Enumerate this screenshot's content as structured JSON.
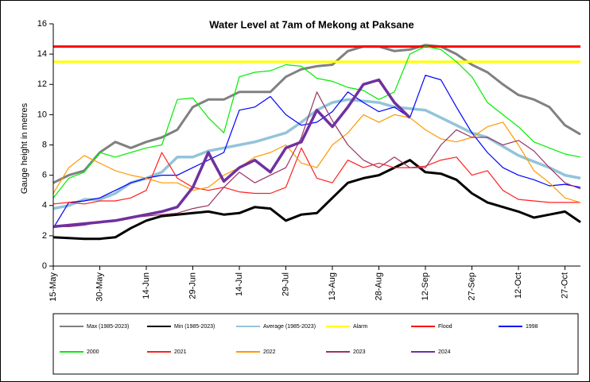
{
  "chart_data": {
    "type": "line",
    "title": "Water Level at 7am  of Mekong  at Paksane",
    "y_label": "Gauge height in metres",
    "categories": [
      "15-May",
      null,
      null,
      "30-May",
      null,
      null,
      "14-Jun",
      null,
      null,
      "29-Jun",
      null,
      null,
      "14-Jul",
      null,
      null,
      "29-Jul",
      null,
      null,
      "13-Aug",
      null,
      null,
      "28-Aug",
      null,
      null,
      "12-Sep",
      null,
      null,
      "27-Sep",
      null,
      null,
      "12-Oct",
      null,
      null,
      "27-Oct",
      null
    ],
    "ylim": [
      0,
      16
    ],
    "yticks": [
      0,
      2,
      4,
      6,
      8,
      10,
      12,
      14,
      16
    ],
    "series": [
      {
        "name": "Max (1985-2023)",
        "color": "#808080",
        "line_width": 3,
        "values": [
          5.5,
          6,
          6.3,
          7.5,
          8.2,
          7.8,
          8.2,
          8.5,
          9,
          10.5,
          11,
          11,
          11.5,
          11.5,
          11.5,
          12.5,
          13,
          13.2,
          13.3,
          14.2,
          14.5,
          14.5,
          14.2,
          14.3,
          14.6,
          14.5,
          14.0,
          13.3,
          12.8,
          12.0,
          11.3,
          11.0,
          10.5,
          9.3,
          8.7
        ]
      },
      {
        "name": "Min (1985-2023)",
        "color": "#000000",
        "line_width": 3,
        "values": [
          1.9,
          1.85,
          1.8,
          1.8,
          1.9,
          2.5,
          3,
          3.3,
          3.4,
          3.5,
          3.6,
          3.4,
          3.5,
          3.9,
          3.8,
          3,
          3.4,
          3.5,
          4.5,
          5.5,
          5.8,
          6.0,
          6.5,
          7.0,
          6.2,
          6.1,
          5.7,
          4.8,
          4.2,
          3.9,
          3.6,
          3.2,
          3.4,
          3.6,
          2.9
        ]
      },
      {
        "name": "Average (1985-2023)",
        "color": "#93c4d9",
        "line_width": 3.5,
        "values": [
          3.8,
          4.0,
          4.4,
          4.4,
          4.8,
          5.5,
          5.8,
          6.2,
          7.2,
          7.2,
          7.6,
          7.8,
          8.0,
          8.2,
          8.5,
          8.8,
          9.5,
          10.3,
          10.8,
          11,
          10.9,
          10.8,
          10.5,
          10.4,
          10.3,
          9.8,
          9.3,
          8.8,
          8.5,
          7.9,
          7.3,
          6.9,
          6.5,
          6.0,
          5.8
        ]
      },
      {
        "name": "Alarm",
        "color": "#ffff00",
        "line_width": 3,
        "values": [
          13.5,
          13.5,
          13.5,
          13.5,
          13.5,
          13.5,
          13.5,
          13.5,
          13.5,
          13.5,
          13.5,
          13.5,
          13.5,
          13.5,
          13.5,
          13.5,
          13.5,
          13.5,
          13.5,
          13.5,
          13.5,
          13.5,
          13.5,
          13.5,
          13.5,
          13.5,
          13.5,
          13.5,
          13.5,
          13.5,
          13.5,
          13.5,
          13.5,
          13.5,
          13.5
        ]
      },
      {
        "name": "Flood",
        "color": "#ff0000",
        "line_width": 3,
        "values": [
          14.5,
          14.5,
          14.5,
          14.5,
          14.5,
          14.5,
          14.5,
          14.5,
          14.5,
          14.5,
          14.5,
          14.5,
          14.5,
          14.5,
          14.5,
          14.5,
          14.5,
          14.5,
          14.5,
          14.5,
          14.5,
          14.5,
          14.5,
          14.5,
          14.5,
          14.5,
          14.5,
          14.5,
          14.5,
          14.5,
          14.5,
          14.5,
          14.5,
          14.5,
          14.5
        ]
      },
      {
        "name": "1998",
        "color": "#0000ff",
        "line_width": 1.2,
        "values": [
          2.5,
          4.2,
          4.3,
          4.5,
          5,
          5.5,
          5.8,
          6,
          6,
          6.5,
          7,
          7.5,
          10.3,
          10.5,
          11.2,
          10,
          9.3,
          9.5,
          10.2,
          11.5,
          10.8,
          10.2,
          10.5,
          9.8,
          12.6,
          12.3,
          10.5,
          8.8,
          7.5,
          6.5,
          6,
          5.7,
          5.3,
          5.4,
          5.2
        ]
      },
      {
        "name": "2000",
        "color": "#00ee00",
        "line_width": 1.2,
        "values": [
          4.5,
          5.8,
          6.2,
          7.5,
          7.2,
          7.5,
          7.8,
          8,
          11,
          11.1,
          9.8,
          8.8,
          12.5,
          12.8,
          12.9,
          13.3,
          13.2,
          12.4,
          12.2,
          11.8,
          11.6,
          11,
          11.5,
          14,
          14.5,
          14.3,
          13.5,
          12.5,
          10.8,
          10,
          9.2,
          8.2,
          7.8,
          7.4,
          7.2
        ]
      },
      {
        "name": "2021",
        "color": "#ff2020",
        "line_width": 1.2,
        "values": [
          4.1,
          4.2,
          4.1,
          4.3,
          4.3,
          4.5,
          5,
          7.5,
          5.8,
          5.2,
          5,
          5.2,
          4.9,
          4.8,
          4.8,
          5.2,
          7.8,
          5.8,
          5.5,
          7,
          6.5,
          6.8,
          6.5,
          6.5,
          6.6,
          7,
          7.2,
          6,
          6.3,
          5,
          4.4,
          4.3,
          4.2,
          4.2,
          4.2
        ]
      },
      {
        "name": "2022",
        "color": "#ff9900",
        "line_width": 1.2,
        "values": [
          4.8,
          6.5,
          7.3,
          6.8,
          6.3,
          6,
          5.8,
          5.5,
          5.5,
          5,
          5.2,
          6,
          6.5,
          7.2,
          7.5,
          8,
          6.8,
          6.5,
          8,
          8.8,
          10,
          9.5,
          10,
          9.8,
          9,
          8.4,
          8.2,
          8.5,
          9.2,
          9.5,
          8,
          6.3,
          5.5,
          4.5,
          4.2
        ]
      },
      {
        "name": "2023",
        "color": "#993366",
        "line_width": 1.2,
        "values": [
          2.6,
          2.6,
          2.7,
          2.9,
          3,
          3.2,
          3.3,
          3.4,
          3.5,
          3.8,
          4,
          5.2,
          6.2,
          5.5,
          6,
          6.5,
          8.5,
          11.5,
          9.6,
          8,
          7,
          6.5,
          7.2,
          6.5,
          6.5,
          8,
          9,
          8.5,
          8.5,
          8.0,
          8.3,
          7.6,
          6.5,
          5.5,
          5.1
        ]
      },
      {
        "name": "2024",
        "color": "#7030a0",
        "line_width": 3.5,
        "values": [
          2.6,
          2.7,
          2.8,
          2.9,
          3,
          3.2,
          3.4,
          3.6,
          3.9,
          5.2,
          7.5,
          5.6,
          6.5,
          7,
          6.2,
          7.8,
          8.2,
          10.3,
          9.2,
          10.5,
          12,
          12.3,
          10.8,
          9.8,
          null,
          null,
          null,
          null,
          null,
          null,
          null,
          null,
          null,
          null,
          null
        ]
      }
    ]
  }
}
